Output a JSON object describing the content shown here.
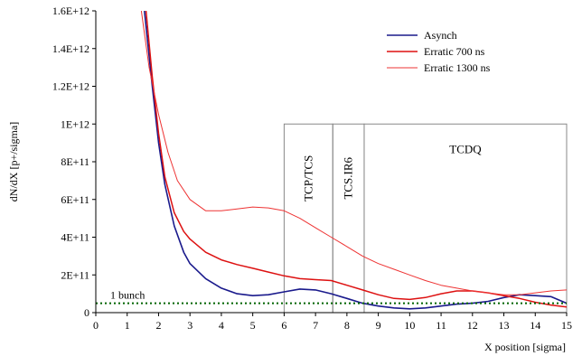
{
  "chart_data": {
    "type": "line",
    "xlabel": "X position [sigma]",
    "ylabel": "dN/dX  [p+/sigma]",
    "xlim": [
      0,
      15
    ],
    "ylim": [
      0,
      1600000000000.0
    ],
    "x_ticks": [
      {
        "value": 0,
        "label": "0"
      },
      {
        "value": 1,
        "label": "1"
      },
      {
        "value": 2,
        "label": "2"
      },
      {
        "value": 3,
        "label": "3"
      },
      {
        "value": 4,
        "label": "4"
      },
      {
        "value": 5,
        "label": "5"
      },
      {
        "value": 6,
        "label": "6"
      },
      {
        "value": 7,
        "label": "7"
      },
      {
        "value": 8,
        "label": "8"
      },
      {
        "value": 9,
        "label": "9"
      },
      {
        "value": 10,
        "label": "10"
      },
      {
        "value": 11,
        "label": "11"
      },
      {
        "value": 12,
        "label": "12"
      },
      {
        "value": 13,
        "label": "13"
      },
      {
        "value": 14,
        "label": "14"
      },
      {
        "value": 15,
        "label": "15"
      }
    ],
    "y_ticks": [
      {
        "value": 0,
        "label": "0"
      },
      {
        "value": 200000000000.0,
        "label": "2E+11"
      },
      {
        "value": 400000000000.0,
        "label": "4E+11"
      },
      {
        "value": 600000000000.0,
        "label": "6E+11"
      },
      {
        "value": 800000000000.0,
        "label": "8E+11"
      },
      {
        "value": 1000000000000.0,
        "label": "1E+12"
      },
      {
        "value": 1200000000000.0,
        "label": "1.2E+12"
      },
      {
        "value": 1400000000000.0,
        "label": "1.4E+12"
      },
      {
        "value": 1600000000000.0,
        "label": "1.6E+12"
      }
    ],
    "legend": "top-right",
    "series": [
      {
        "name": "Asynch",
        "color": "#1a1a8c",
        "stroke": 1.6,
        "x": [
          1.55,
          1.8,
          2.0,
          2.2,
          2.5,
          2.8,
          3.0,
          3.5,
          4.0,
          4.5,
          5.0,
          5.5,
          6.0,
          6.5,
          7.0,
          7.5,
          8.0,
          8.5,
          9.0,
          9.5,
          10.0,
          10.5,
          11.0,
          11.5,
          12.0,
          12.5,
          13.0,
          13.5,
          14.0,
          14.5,
          15.0
        ],
        "y": [
          1600000000000.0,
          1200000000000.0,
          900000000000.0,
          680000000000.0,
          460000000000.0,
          320000000000.0,
          260000000000.0,
          180000000000.0,
          130000000000.0,
          100000000000.0,
          90000000000.0,
          95000000000.0,
          110000000000.0,
          125000000000.0,
          120000000000.0,
          100000000000.0,
          75000000000.0,
          50000000000.0,
          35000000000.0,
          25000000000.0,
          20000000000.0,
          25000000000.0,
          35000000000.0,
          45000000000.0,
          50000000000.0,
          60000000000.0,
          80000000000.0,
          95000000000.0,
          90000000000.0,
          85000000000.0,
          50000000000.0
        ]
      },
      {
        "name": "Erratic 700 ns",
        "color": "#dd1111",
        "stroke": 1.5,
        "x": [
          1.6,
          1.8,
          2.0,
          2.2,
          2.5,
          2.8,
          3.0,
          3.5,
          4.0,
          4.5,
          5.0,
          5.5,
          6.0,
          6.5,
          7.0,
          7.5,
          8.0,
          8.5,
          9.0,
          9.5,
          10.0,
          10.5,
          11.0,
          11.5,
          12.0,
          12.5,
          13.0,
          13.5,
          14.0,
          14.5,
          15.0
        ],
        "y": [
          1600000000000.0,
          1250000000000.0,
          950000000000.0,
          720000000000.0,
          530000000000.0,
          430000000000.0,
          390000000000.0,
          320000000000.0,
          280000000000.0,
          255000000000.0,
          235000000000.0,
          215000000000.0,
          195000000000.0,
          180000000000.0,
          175000000000.0,
          170000000000.0,
          145000000000.0,
          120000000000.0,
          95000000000.0,
          75000000000.0,
          70000000000.0,
          80000000000.0,
          100000000000.0,
          115000000000.0,
          115000000000.0,
          105000000000.0,
          90000000000.0,
          75000000000.0,
          55000000000.0,
          40000000000.0,
          30000000000.0
        ]
      },
      {
        "name": "Erratic 1300 ns",
        "color": "#ee3333",
        "stroke": 1.0,
        "x": [
          1.45,
          1.7,
          2.0,
          2.3,
          2.6,
          3.0,
          3.5,
          4.0,
          4.5,
          5.0,
          5.5,
          6.0,
          6.5,
          7.0,
          7.5,
          8.0,
          8.5,
          9.0,
          9.5,
          10.0,
          10.5,
          11.0,
          11.5,
          12.0,
          12.5,
          13.0,
          13.5,
          14.0,
          14.5,
          15.0
        ],
        "y": [
          1600000000000.0,
          1300000000000.0,
          1050000000000.0,
          850000000000.0,
          700000000000.0,
          600000000000.0,
          540000000000.0,
          540000000000.0,
          550000000000.0,
          560000000000.0,
          555000000000.0,
          540000000000.0,
          500000000000.0,
          450000000000.0,
          400000000000.0,
          350000000000.0,
          300000000000.0,
          260000000000.0,
          230000000000.0,
          200000000000.0,
          170000000000.0,
          145000000000.0,
          130000000000.0,
          115000000000.0,
          105000000000.0,
          95000000000.0,
          95000000000.0,
          105000000000.0,
          115000000000.0,
          120000000000.0
        ]
      }
    ],
    "reference_lines": [
      {
        "label": "1 bunch",
        "y": 50000000000.0,
        "color": "#006400",
        "style": "dotted"
      }
    ],
    "regions": [
      {
        "label": "TCP/TCS",
        "x_from": 6.0,
        "x_to": 7.55,
        "y_top": 1000000000000.0
      },
      {
        "label": "TCS.IR6",
        "x_from": 7.55,
        "x_to": 8.55,
        "y_top": 1000000000000.0
      },
      {
        "label": "TCDQ",
        "x_from": 8.55,
        "x_to": 15.0,
        "y_top": 1000000000000.0
      }
    ]
  }
}
